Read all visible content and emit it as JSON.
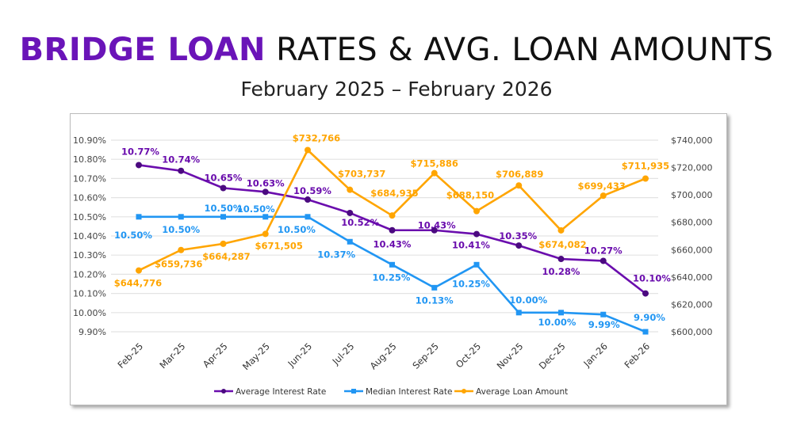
{
  "title": {
    "highlight": "BRIDGE LOAN",
    "rest": "RATES & AVG. LOAN AMOUNTS"
  },
  "subtitle": "February 2025 – February 2026",
  "chart_data": {
    "type": "line",
    "categories": [
      "Feb-25",
      "Mar-25",
      "Apr-25",
      "May-25",
      "Jun-25",
      "Jul-25",
      "Aug-25",
      "Sep-25",
      "Oct-25",
      "Nov-25",
      "Dec-25",
      "Jan-26",
      "Feb-26"
    ],
    "y_left": {
      "range": [
        9.9,
        10.9
      ],
      "step": 0.1,
      "ticks": [
        "9.90%",
        "10.00%",
        "10.10%",
        "10.20%",
        "10.30%",
        "10.40%",
        "10.50%",
        "10.60%",
        "10.70%",
        "10.80%",
        "10.90%"
      ]
    },
    "y_right": {
      "range": [
        600000,
        740000
      ],
      "step": 20000,
      "ticks": [
        "$600,000",
        "$620,000",
        "$640,000",
        "$660,000",
        "$680,000",
        "$700,000",
        "$720,000",
        "$740,000"
      ]
    },
    "grid": true,
    "legend": "bottom",
    "series": [
      {
        "name": "Average Interest Rate",
        "axis": "left",
        "color": "#6a0dad",
        "marker": "circle",
        "values": [
          10.77,
          10.74,
          10.65,
          10.63,
          10.59,
          10.52,
          10.43,
          10.43,
          10.41,
          10.35,
          10.28,
          10.27,
          10.1
        ],
        "labels": [
          "10.77%",
          "10.74%",
          "10.65%",
          "10.63%",
          "10.59%",
          "10.52%",
          "10.43%",
          "10.43%",
          "10.41%",
          "10.35%",
          "10.28%",
          "10.27%",
          "10.10%"
        ]
      },
      {
        "name": "Median Interest Rate",
        "axis": "left",
        "color": "#2196f3",
        "marker": "square",
        "values": [
          10.5,
          10.5,
          10.5,
          10.5,
          10.5,
          10.37,
          10.25,
          10.13,
          10.25,
          10.0,
          10.0,
          9.99,
          9.9
        ],
        "labels": [
          "10.50%",
          "10.50%",
          "10.50%",
          "10.50%",
          "10.50%",
          "10.37%",
          "10.25%",
          "10.13%",
          "10.25%",
          "10.00%",
          "10.00%",
          "9.99%",
          "9.90%"
        ]
      },
      {
        "name": "Average Loan Amount",
        "axis": "right",
        "color": "#ffa500",
        "marker": "circle",
        "values": [
          644776,
          659736,
          664287,
          671505,
          732766,
          703737,
          684935,
          715886,
          688150,
          706889,
          674082,
          699433,
          711935
        ],
        "labels": [
          "$644,776",
          "$659,736",
          "$664,287",
          "$671,505",
          "$732,766",
          "$703,737",
          "$684,935",
          "$715,886",
          "$688,150",
          "$706,889",
          "$674,082",
          "$699,433",
          "$711,935"
        ]
      }
    ]
  }
}
